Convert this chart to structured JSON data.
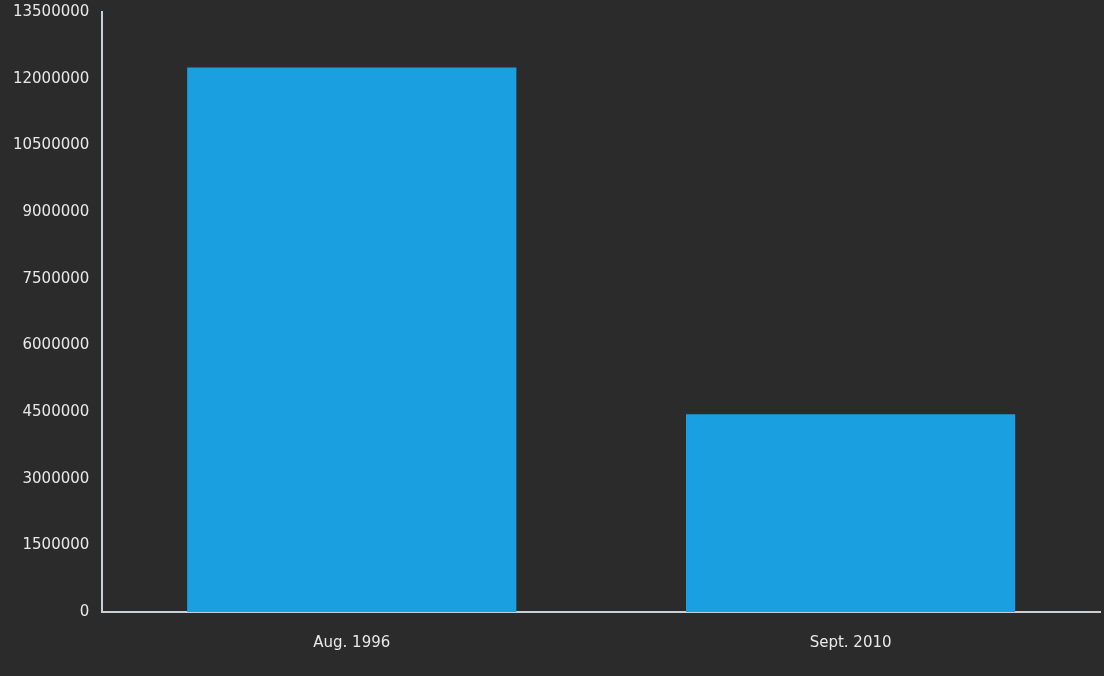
{
  "chart_data": {
    "type": "bar",
    "categories": [
      "Aug. 1996",
      "Sept. 2010"
    ],
    "values": [
      12250000,
      4450000
    ],
    "color": "#1a9fe0",
    "ylim": [
      0,
      13500000
    ],
    "yticks": [
      0,
      1500000,
      3000000,
      4500000,
      6000000,
      7500000,
      9000000,
      10500000,
      12000000,
      13500000
    ],
    "grid": false,
    "legend": false
  }
}
